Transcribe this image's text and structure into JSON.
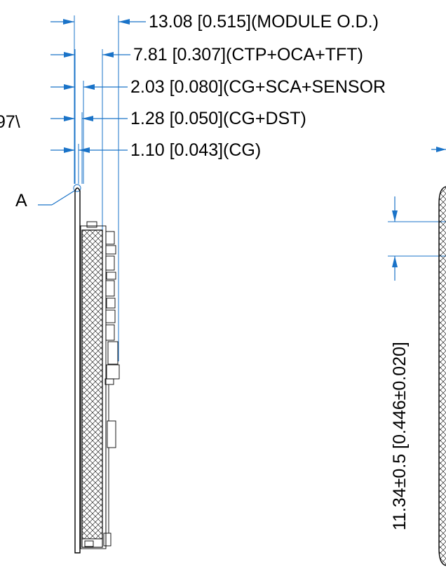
{
  "dimensions": [
    {
      "text": "13.08 [0.515](MODULE O.D.)"
    },
    {
      "text": "7.81 [0.307](CTP+OCA+TFT)"
    },
    {
      "text": "2.03 [0.080](CG+SCA+SENSOR"
    },
    {
      "text": "1.28 [0.050](CG+DST)"
    },
    {
      "text": "1.10 [0.043](CG)"
    }
  ],
  "left_cut_label": "97\\",
  "detail_label": "A",
  "vertical_dimension": "11.34±0.5 [0.446±0.020]",
  "colors": {
    "dimension": "#1a73c8",
    "outline": "#000000",
    "background": "#ffffff"
  }
}
